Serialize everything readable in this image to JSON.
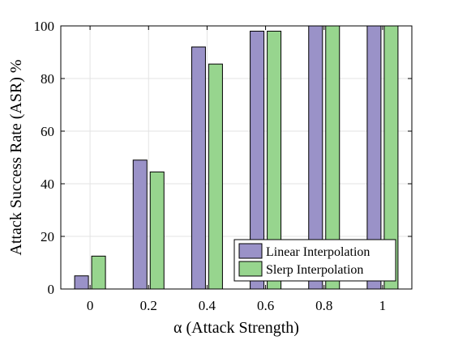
{
  "chart_data": {
    "type": "bar",
    "categories": [
      "0",
      "0.2",
      "0.4",
      "0.6",
      "0.8",
      "1"
    ],
    "series": [
      {
        "name": "Linear Interpolation",
        "color": "#9a92c8",
        "values": [
          5,
          49,
          92,
          98,
          100,
          100
        ]
      },
      {
        "name": "Slerp Interpolation",
        "color": "#97d58e",
        "values": [
          12.5,
          44.5,
          85.5,
          98,
          100,
          100
        ]
      }
    ],
    "xlabel": "α (Attack Strength)",
    "ylabel": "Attack Success Rate (ASR) %",
    "ylim": [
      0,
      100
    ],
    "yticks": [
      "0",
      "20",
      "40",
      "60",
      "80",
      "100"
    ],
    "grid": true,
    "legend_position": "bottom-right"
  }
}
